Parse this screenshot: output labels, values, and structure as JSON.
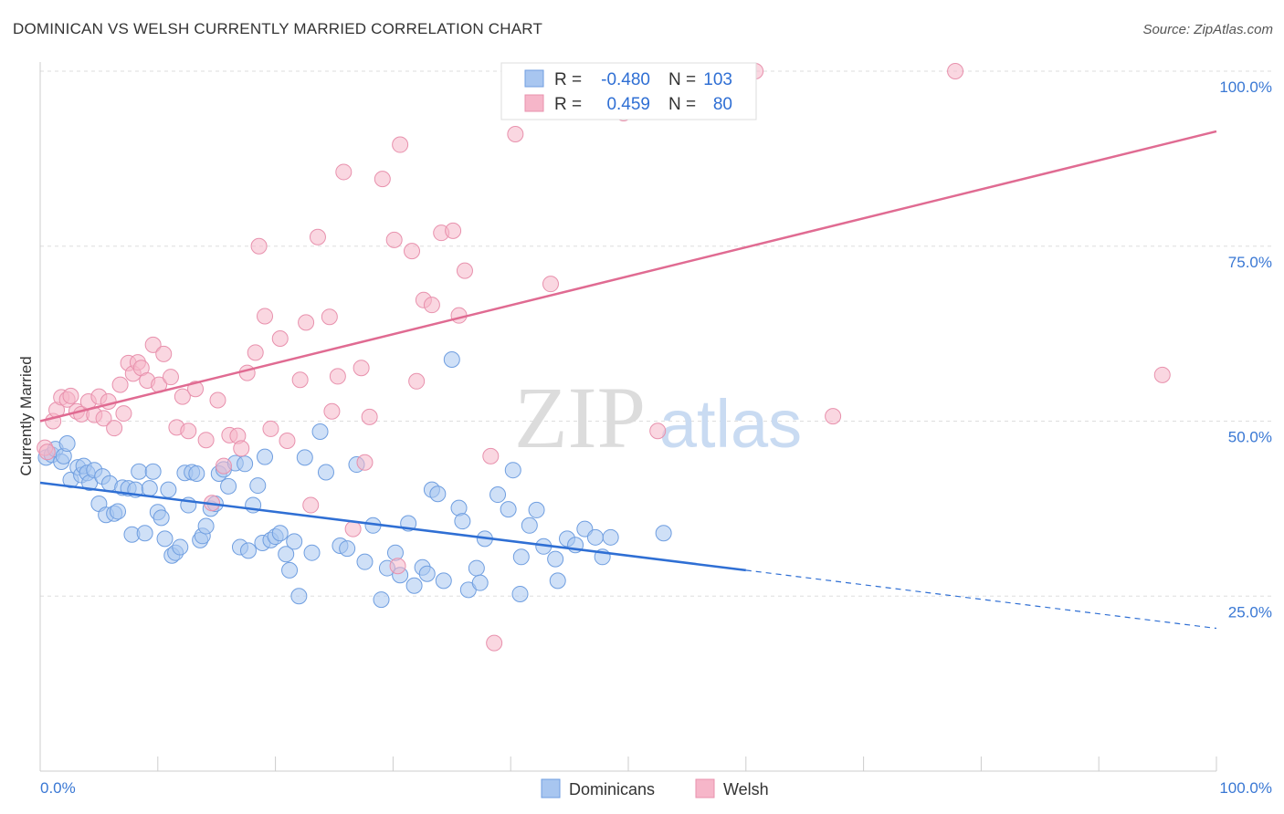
{
  "title": "DOMINICAN VS WELSH CURRENTLY MARRIED CORRELATION CHART",
  "source": "Source: ZipAtlas.com",
  "watermark": {
    "zip": "ZIP",
    "atlas": "atlas"
  },
  "colors": {
    "dominicans_fill": "#a8c6f0",
    "dominicans_stroke": "#6f9ee0",
    "dominicans_line": "#2f6fd4",
    "welsh_fill": "#f6b6c9",
    "welsh_stroke": "#e891ad",
    "welsh_line": "#e06b92",
    "axis_label": "#3a78d4",
    "grid": "#dddddd"
  },
  "legend_top": {
    "rows": [
      {
        "r_label": "R =",
        "r_value": "-0.480",
        "n_label": "N =",
        "n_value": "103"
      },
      {
        "r_label": "R =",
        "r_value": "0.459",
        "n_label": "N =",
        "n_value": "80"
      }
    ]
  },
  "legend_bottom": [
    "Dominicans",
    "Welsh"
  ],
  "chart_data": {
    "type": "scatter",
    "title": "DOMINICAN VS WELSH CURRENTLY MARRIED CORRELATION CHART",
    "xlabel": "",
    "ylabel": "Currently Married",
    "xlim": [
      0,
      100
    ],
    "ylim": [
      0,
      100
    ],
    "x_tick_labels": [
      "0.0%",
      "100.0%"
    ],
    "y_ticks": [
      25,
      50,
      75,
      100
    ],
    "y_tick_labels": [
      "25.0%",
      "50.0%",
      "75.0%",
      "100.0%"
    ],
    "grid": true,
    "legend_placement": "top-center",
    "series": [
      {
        "name": "Dominicans",
        "r": -0.48,
        "n": 103,
        "trend": {
          "x0": 0,
          "y0": 41.2,
          "x1": 60,
          "y1": 28.7,
          "dash_x1": 100,
          "dash_y1": 20.4
        },
        "points": [
          [
            0.5,
            44.8
          ],
          [
            1.0,
            45.2
          ],
          [
            1.3,
            46.0
          ],
          [
            1.8,
            44.2
          ],
          [
            2.0,
            45.0
          ],
          [
            2.3,
            46.8
          ],
          [
            2.6,
            41.6
          ],
          [
            3.2,
            43.4
          ],
          [
            3.5,
            42.3
          ],
          [
            3.7,
            43.6
          ],
          [
            4.0,
            42.6
          ],
          [
            4.2,
            41.2
          ],
          [
            4.6,
            43.0
          ],
          [
            5.0,
            38.2
          ],
          [
            5.3,
            42.1
          ],
          [
            5.6,
            36.6
          ],
          [
            5.9,
            41.1
          ],
          [
            6.3,
            36.8
          ],
          [
            6.6,
            37.1
          ],
          [
            7.0,
            40.5
          ],
          [
            7.5,
            40.4
          ],
          [
            7.8,
            33.8
          ],
          [
            8.1,
            40.2
          ],
          [
            8.4,
            42.8
          ],
          [
            8.9,
            34.0
          ],
          [
            9.3,
            40.4
          ],
          [
            9.6,
            42.8
          ],
          [
            10.0,
            37.0
          ],
          [
            10.3,
            36.2
          ],
          [
            10.6,
            33.2
          ],
          [
            10.9,
            40.2
          ],
          [
            11.2,
            30.8
          ],
          [
            11.5,
            31.2
          ],
          [
            11.9,
            32.0
          ],
          [
            12.3,
            42.6
          ],
          [
            12.6,
            38.0
          ],
          [
            12.9,
            42.7
          ],
          [
            13.3,
            42.5
          ],
          [
            13.6,
            33.0
          ],
          [
            13.8,
            33.6
          ],
          [
            14.1,
            35.0
          ],
          [
            14.5,
            37.5
          ],
          [
            14.9,
            38.2
          ],
          [
            15.2,
            42.5
          ],
          [
            15.6,
            43.1
          ],
          [
            16.0,
            40.7
          ],
          [
            16.6,
            44.0
          ],
          [
            17.0,
            32.0
          ],
          [
            17.4,
            43.9
          ],
          [
            17.7,
            31.5
          ],
          [
            18.1,
            38.0
          ],
          [
            18.5,
            40.8
          ],
          [
            18.9,
            32.6
          ],
          [
            19.1,
            44.9
          ],
          [
            19.6,
            33.0
          ],
          [
            20.0,
            33.5
          ],
          [
            20.4,
            34.0
          ],
          [
            20.9,
            31.0
          ],
          [
            21.2,
            28.7
          ],
          [
            21.6,
            32.8
          ],
          [
            22.0,
            25.0
          ],
          [
            22.5,
            44.8
          ],
          [
            23.1,
            31.2
          ],
          [
            23.8,
            48.5
          ],
          [
            24.3,
            42.7
          ],
          [
            25.5,
            32.2
          ],
          [
            26.1,
            31.8
          ],
          [
            26.9,
            43.8
          ],
          [
            27.6,
            29.9
          ],
          [
            28.3,
            35.1
          ],
          [
            29.0,
            24.5
          ],
          [
            29.5,
            29.0
          ],
          [
            30.2,
            31.2
          ],
          [
            30.6,
            28.0
          ],
          [
            31.3,
            35.4
          ],
          [
            31.8,
            26.5
          ],
          [
            32.5,
            29.1
          ],
          [
            32.9,
            28.2
          ],
          [
            33.3,
            40.2
          ],
          [
            33.8,
            39.6
          ],
          [
            34.3,
            27.2
          ],
          [
            35.0,
            58.8
          ],
          [
            35.6,
            37.6
          ],
          [
            35.9,
            35.7
          ],
          [
            36.4,
            25.9
          ],
          [
            37.1,
            29.0
          ],
          [
            37.4,
            26.9
          ],
          [
            37.8,
            33.2
          ],
          [
            38.9,
            39.5
          ],
          [
            39.8,
            37.4
          ],
          [
            40.2,
            43.0
          ],
          [
            40.8,
            25.3
          ],
          [
            40.9,
            30.6
          ],
          [
            41.6,
            35.1
          ],
          [
            42.2,
            37.3
          ],
          [
            42.8,
            32.1
          ],
          [
            43.8,
            30.3
          ],
          [
            44.0,
            27.2
          ],
          [
            44.8,
            33.2
          ],
          [
            45.5,
            32.3
          ],
          [
            46.3,
            34.6
          ],
          [
            47.2,
            33.4
          ],
          [
            47.8,
            30.6
          ],
          [
            48.5,
            33.4
          ],
          [
            53.0,
            34.0
          ]
        ]
      },
      {
        "name": "Welsh",
        "r": 0.459,
        "n": 80,
        "trend": {
          "x0": 0,
          "y0": 50.0,
          "x1": 100,
          "y1": 91.4
        },
        "points": [
          [
            0.4,
            46.2
          ],
          [
            0.6,
            45.6
          ],
          [
            1.1,
            50.0
          ],
          [
            1.4,
            51.6
          ],
          [
            1.8,
            53.4
          ],
          [
            2.3,
            53.1
          ],
          [
            2.6,
            53.6
          ],
          [
            3.1,
            51.4
          ],
          [
            3.5,
            51.0
          ],
          [
            4.1,
            52.8
          ],
          [
            4.6,
            50.9
          ],
          [
            5.0,
            53.5
          ],
          [
            5.4,
            50.4
          ],
          [
            5.8,
            52.8
          ],
          [
            6.3,
            49.0
          ],
          [
            6.8,
            55.2
          ],
          [
            7.1,
            51.1
          ],
          [
            7.5,
            58.3
          ],
          [
            7.9,
            56.8
          ],
          [
            8.3,
            58.4
          ],
          [
            8.6,
            57.6
          ],
          [
            9.1,
            55.8
          ],
          [
            9.6,
            60.9
          ],
          [
            10.1,
            55.2
          ],
          [
            10.5,
            59.6
          ],
          [
            11.1,
            56.3
          ],
          [
            11.6,
            49.1
          ],
          [
            12.1,
            53.5
          ],
          [
            12.6,
            48.6
          ],
          [
            13.2,
            54.6
          ],
          [
            14.1,
            47.3
          ],
          [
            14.6,
            38.3
          ],
          [
            15.1,
            53.0
          ],
          [
            15.6,
            43.6
          ],
          [
            16.1,
            48.0
          ],
          [
            16.8,
            47.9
          ],
          [
            17.1,
            46.1
          ],
          [
            17.6,
            56.9
          ],
          [
            18.3,
            59.8
          ],
          [
            18.6,
            75.0
          ],
          [
            19.1,
            65.0
          ],
          [
            19.6,
            48.9
          ],
          [
            20.4,
            61.8
          ],
          [
            21.0,
            47.2
          ],
          [
            22.1,
            55.9
          ],
          [
            22.6,
            64.1
          ],
          [
            23.0,
            38.0
          ],
          [
            23.6,
            76.3
          ],
          [
            24.6,
            64.9
          ],
          [
            24.8,
            51.4
          ],
          [
            25.3,
            56.4
          ],
          [
            25.8,
            85.6
          ],
          [
            26.6,
            34.6
          ],
          [
            27.3,
            57.6
          ],
          [
            27.6,
            44.1
          ],
          [
            28.0,
            50.6
          ],
          [
            29.1,
            84.6
          ],
          [
            30.1,
            75.9
          ],
          [
            30.4,
            29.3
          ],
          [
            30.6,
            89.5
          ],
          [
            31.6,
            74.3
          ],
          [
            32.0,
            55.7
          ],
          [
            32.6,
            67.3
          ],
          [
            33.3,
            66.6
          ],
          [
            34.1,
            76.9
          ],
          [
            35.1,
            77.2
          ],
          [
            35.6,
            65.1
          ],
          [
            36.1,
            71.5
          ],
          [
            38.3,
            45.0
          ],
          [
            38.6,
            18.3
          ],
          [
            40.4,
            91.0
          ],
          [
            41.0,
            100.0
          ],
          [
            43.4,
            69.6
          ],
          [
            47.6,
            100.0
          ],
          [
            49.6,
            94.0
          ],
          [
            52.5,
            48.6
          ],
          [
            60.8,
            100.0
          ],
          [
            67.4,
            50.7
          ],
          [
            77.8,
            100.0
          ],
          [
            95.4,
            56.6
          ]
        ]
      }
    ]
  }
}
